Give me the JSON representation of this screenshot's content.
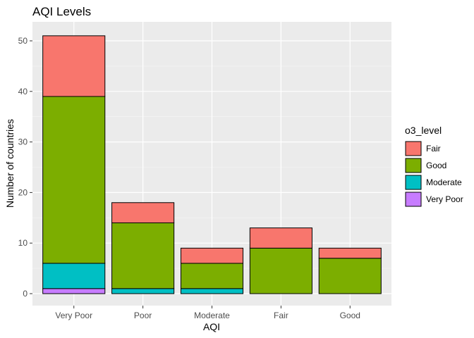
{
  "chart_data": {
    "type": "bar",
    "stacked": true,
    "title": "AQI Levels",
    "xlabel": "AQI",
    "ylabel": "Number of countries",
    "categories": [
      "Very Poor",
      "Poor",
      "Moderate",
      "Fair",
      "Good"
    ],
    "ylim": [
      0,
      53
    ],
    "yticks": [
      0,
      10,
      20,
      30,
      40,
      50
    ],
    "grid": true,
    "legend": {
      "title": "o3_level",
      "placement": "right"
    },
    "series": [
      {
        "name": "Very Poor",
        "color": "#C77CFF",
        "values": [
          1,
          0,
          0,
          0,
          0
        ]
      },
      {
        "name": "Moderate",
        "color": "#00BFC4",
        "values": [
          5,
          1,
          1,
          0,
          0
        ]
      },
      {
        "name": "Good",
        "color": "#7CAE00",
        "values": [
          33,
          13,
          5,
          9,
          7
        ]
      },
      {
        "name": "Fair",
        "color": "#F8766D",
        "values": [
          12,
          4,
          3,
          4,
          2
        ]
      }
    ],
    "legend_order": [
      "Fair",
      "Good",
      "Moderate",
      "Very Poor"
    ]
  }
}
